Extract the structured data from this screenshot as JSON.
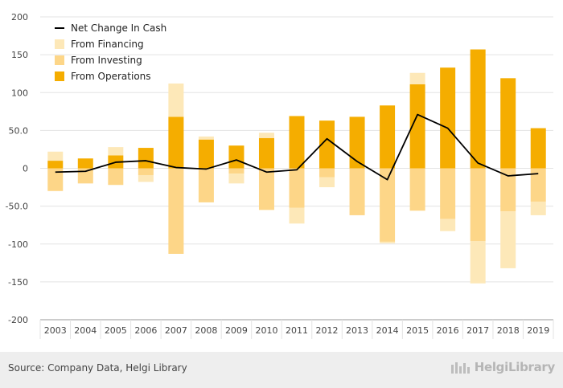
{
  "chart_data": {
    "type": "bar",
    "stacked": true,
    "categories": [
      "2003",
      "2004",
      "2005",
      "2006",
      "2007",
      "2008",
      "2009",
      "2010",
      "2011",
      "2012",
      "2013",
      "2014",
      "2015",
      "2016",
      "2017",
      "2018",
      "2019"
    ],
    "series": [
      {
        "name": "Net Change In Cash",
        "kind": "line",
        "color": "#000000",
        "values": [
          -5,
          -4,
          8,
          10,
          1,
          -1,
          11,
          -5,
          -2,
          39,
          9,
          -15,
          71,
          53,
          7,
          -10,
          -7
        ]
      },
      {
        "name": "From Financing",
        "kind": "bar",
        "color": "#fde8b8",
        "values": [
          12,
          0,
          11,
          0,
          44,
          4,
          0,
          7,
          0,
          -13,
          0,
          -2,
          15,
          -16,
          -56,
          -75,
          -18
        ]
      },
      {
        "name": "From Investing",
        "kind": "bar",
        "color": "#fdd688",
        "values": [
          -30,
          -20,
          -22,
          -9,
          -113,
          -45,
          -7,
          -55,
          -52,
          -12,
          -62,
          -97,
          -56,
          -67,
          -96,
          -57,
          -44
        ]
      },
      {
        "name": "From Operations",
        "kind": "bar",
        "color": "#f5ad00",
        "values": [
          10,
          13,
          17,
          27,
          68,
          38,
          30,
          40,
          69,
          63,
          68,
          83,
          111,
          133,
          157,
          119,
          53
        ]
      }
    ],
    "financing_extra_negative": [
      0,
      0,
      0,
      -9,
      0,
      0,
      -13,
      0,
      -21,
      0,
      0,
      0,
      0,
      0,
      0,
      0,
      0
    ],
    "yticks": [
      "200",
      "150",
      "100",
      "50.0",
      "0",
      "-50.0",
      "-100",
      "-150",
      "-200"
    ],
    "ylim": [
      -200,
      200
    ],
    "legend_position": "top-left",
    "grid": true
  },
  "footer": {
    "source": "Source: Company Data, Helgi Library",
    "brand": "HelgiLibrary"
  },
  "colors": {
    "grid": "#e3e3e3",
    "axis": "#9a9a9a",
    "footer_bg": "#eeeeee"
  }
}
